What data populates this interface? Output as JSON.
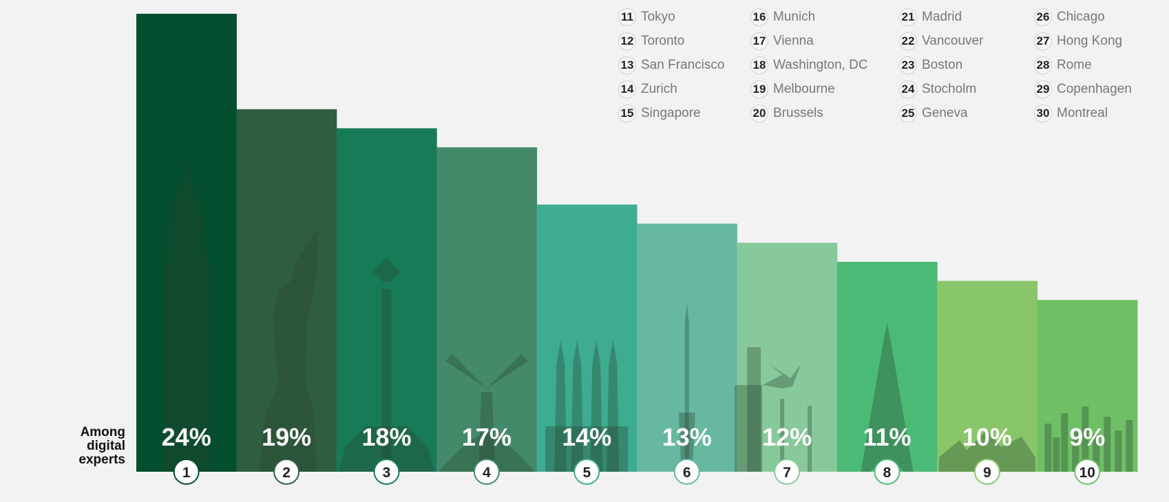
{
  "side_label": "Among digital experts",
  "chart_data": {
    "type": "bar",
    "categories": [
      "1",
      "2",
      "3",
      "4",
      "5",
      "6",
      "7",
      "8",
      "9",
      "10"
    ],
    "values": [
      24,
      19,
      18,
      17,
      14,
      13,
      12,
      11,
      10,
      9
    ],
    "labels": [
      "24%",
      "19%",
      "18%",
      "17%",
      "14%",
      "13%",
      "12%",
      "11%",
      "10%",
      "9%"
    ],
    "colors": [
      "#034e2e",
      "#2e5e3f",
      "#177b58",
      "#448a6a",
      "#3dac91",
      "#66b8a1",
      "#88c99b",
      "#4cba77",
      "#89c66a",
      "#6fbf66"
    ],
    "icons": [
      "big-ben-icon",
      "statue-of-liberty-icon",
      "angel-of-independence-icon",
      "windmill-icon",
      "sagrada-familia-icon",
      "tv-tower-icon",
      "palm-skyline-icon",
      "eiffel-tower-icon",
      "opera-house-icon",
      "skyline-icon"
    ],
    "legend_columns": [
      [
        {
          "rank": "11",
          "city": "Tokyo"
        },
        {
          "rank": "12",
          "city": "Toronto"
        },
        {
          "rank": "13",
          "city": "San Francisco"
        },
        {
          "rank": "14",
          "city": "Zurich"
        },
        {
          "rank": "15",
          "city": "Singapore"
        }
      ],
      [
        {
          "rank": "16",
          "city": "Munich"
        },
        {
          "rank": "17",
          "city": "Vienna"
        },
        {
          "rank": "18",
          "city": "Washington, DC"
        },
        {
          "rank": "19",
          "city": "Melbourne"
        },
        {
          "rank": "20",
          "city": "Brussels"
        }
      ],
      [
        {
          "rank": "21",
          "city": "Madrid"
        },
        {
          "rank": "22",
          "city": "Vancouver"
        },
        {
          "rank": "23",
          "city": "Boston"
        },
        {
          "rank": "24",
          "city": "Stocholm"
        },
        {
          "rank": "25",
          "city": "Geneva"
        }
      ],
      [
        {
          "rank": "26",
          "city": "Chicago"
        },
        {
          "rank": "27",
          "city": "Hong Kong"
        },
        {
          "rank": "28",
          "city": "Rome"
        },
        {
          "rank": "29",
          "city": "Copenhagen"
        },
        {
          "rank": "30",
          "city": "Montreal"
        }
      ]
    ]
  }
}
